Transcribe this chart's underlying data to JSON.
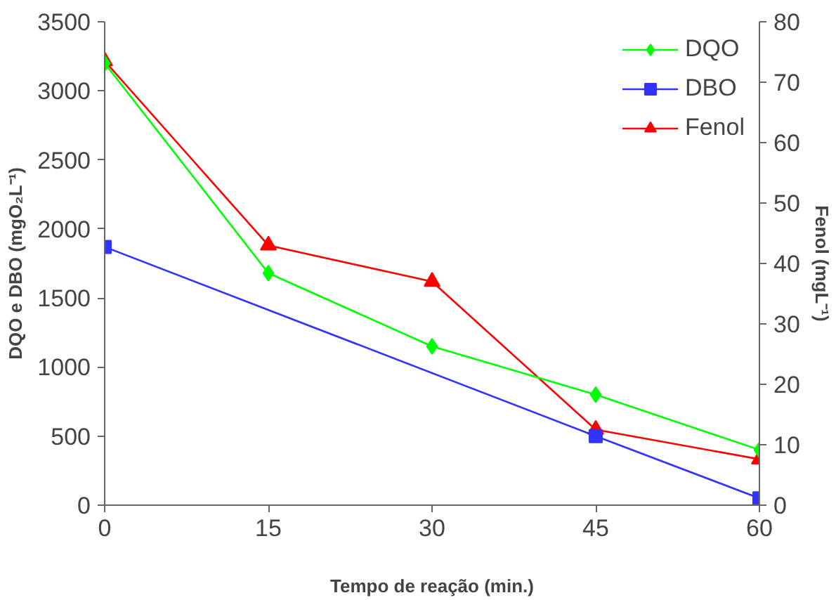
{
  "chart_data": {
    "type": "line",
    "xlabel": "Tempo de reação (min.)",
    "ylabel": "DQO e DBO (mgO₂L⁻¹)",
    "y2label": "Fenol (mgL⁻¹)",
    "x": [
      0,
      15,
      30,
      45,
      60
    ],
    "xlim": [
      0,
      60
    ],
    "xticks": [
      0,
      15,
      30,
      45,
      60
    ],
    "ylim": [
      0,
      3500
    ],
    "yticks": [
      0,
      500,
      1000,
      1500,
      2000,
      2500,
      3000,
      3500
    ],
    "y2lim": [
      0,
      80
    ],
    "y2ticks": [
      0,
      10,
      20,
      30,
      40,
      50,
      60,
      70,
      80
    ],
    "grid": false,
    "legend": "top right",
    "series": [
      {
        "name": "DQO",
        "color": "#00ff00",
        "marker": "diamond",
        "values": [
          3200,
          1680,
          1150,
          800,
          400
        ]
      },
      {
        "name": "DBO",
        "color": "#3333ff",
        "marker": "square",
        "x": [
          0,
          45,
          60
        ],
        "values": [
          1870,
          500,
          50
        ]
      },
      {
        "name": "Fenol",
        "color": "#ff0000",
        "marker": "triangle",
        "axis": "y2",
        "values": [
          73.5,
          43,
          37,
          12.5,
          7.6
        ]
      }
    ]
  }
}
